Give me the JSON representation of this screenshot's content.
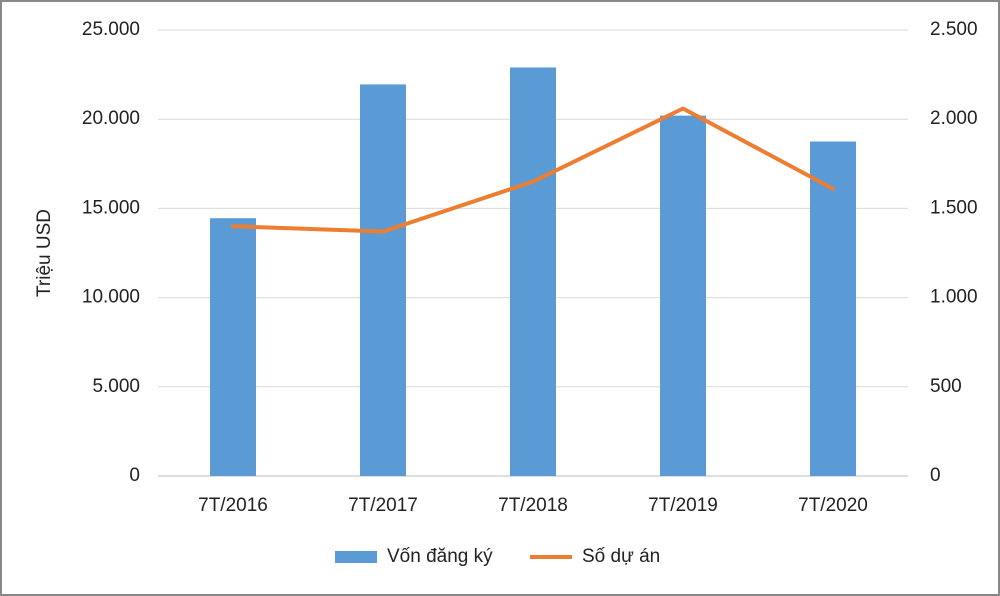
{
  "chart_data": {
    "type": "bar",
    "y_label": "Triệu USD",
    "categories": [
      "7T/2016",
      "7T/2017",
      "7T/2018",
      "7T/2019",
      "7T/2020"
    ],
    "series": [
      {
        "name": "Vốn đăng ký",
        "type": "bar",
        "color": "#5b9bd5",
        "values": [
          14450,
          21950,
          22900,
          20200,
          18750
        ]
      },
      {
        "name": "Số dự án",
        "type": "line",
        "axis": "y2",
        "color": "#ed7d31",
        "values": [
          1400,
          1370,
          1650,
          2060,
          1610
        ]
      }
    ],
    "ylim": [
      0,
      25000
    ],
    "yticks": [
      0,
      {
        "value": 5000,
        "label": "5.000"
      },
      {
        "value": 10000,
        "label": "10.000"
      },
      {
        "value": 15000,
        "label": "15.000"
      },
      {
        "value": 20000,
        "label": "20.000"
      },
      {
        "value": 25000,
        "label": "25.000"
      }
    ],
    "y2lim": [
      0,
      2500
    ],
    "y2ticks": [
      0,
      500,
      {
        "value": 1000,
        "label": "1.000"
      },
      {
        "value": 1500,
        "label": "1.500"
      },
      {
        "value": 2000,
        "label": "2.000"
      },
      {
        "value": 2500,
        "label": "2.500"
      }
    ],
    "grid": true,
    "legend": "bottom"
  }
}
